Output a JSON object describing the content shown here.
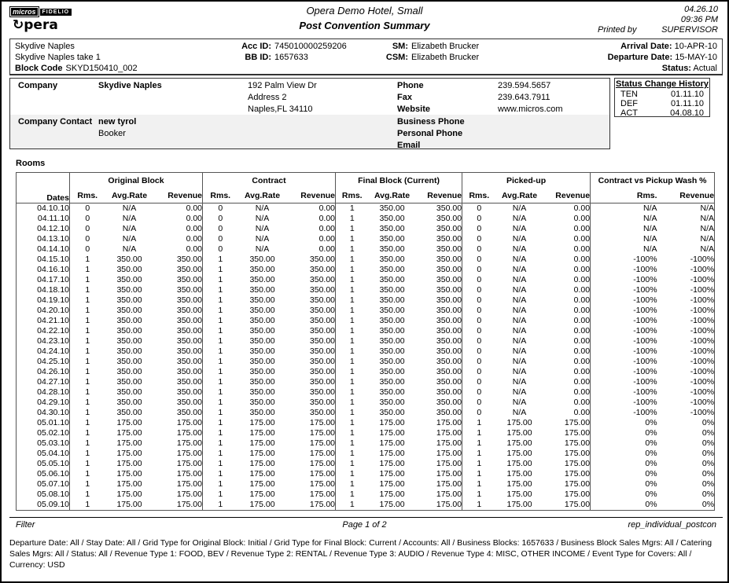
{
  "header": {
    "logo_micros": "micros",
    "logo_fidelio": "FIDELIO",
    "logo_opera_symbol": "↻",
    "logo_opera_text": "pera",
    "hotel_name": "Opera Demo Hotel, Small",
    "report_title": "Post Convention Summary",
    "date": "04.26.10",
    "time": "09:36 PM",
    "printed_by_label": "Printed by",
    "printed_by": "SUPERVISOR"
  },
  "block_info": {
    "account_name": "Skydive Naples",
    "block_name": "Skydive Naples take 1",
    "block_code_label": "Block Code",
    "block_code": "SKYD150410_002",
    "acc_id_label": "Acc ID:",
    "acc_id": "745010000259206",
    "bb_id_label": "BB ID:",
    "bb_id": "1657633",
    "sm_label": "SM:",
    "sm": "Elizabeth Brucker",
    "csm_label": "CSM:",
    "csm": "Elizabeth Brucker",
    "arrival_label": "Arrival Date:",
    "arrival": "10-APR-10",
    "departure_label": "Departure Date:",
    "departure": "15-MAY-10",
    "status_label": "Status:",
    "status": "Actual"
  },
  "company": {
    "label": "Company",
    "name": "Skydive Naples",
    "address_lines": [
      "192 Palm View Dr",
      "Address 2",
      "Naples,FL 34110"
    ],
    "phone_label": "Phone",
    "phone": "239.594.5657",
    "fax_label": "Fax",
    "fax": "239.643.7911",
    "website_label": "Website",
    "website": "www.micros.com",
    "contact_label": "Company Contact",
    "contact_name": "new tyrol",
    "contact_role": "Booker",
    "business_phone_label": "Business Phone",
    "personal_phone_label": "Personal Phone",
    "email_label": "Email"
  },
  "status_history": {
    "title": "Status Change History",
    "rows": [
      {
        "code": "TEN",
        "date": "01.11.10"
      },
      {
        "code": "DEF",
        "date": "01.11.10"
      },
      {
        "code": "ACT",
        "date": "04.08.10"
      }
    ]
  },
  "rooms": {
    "section_title": "Rooms",
    "group_headers": [
      "Original Block",
      "Contract",
      "Final Block (Current)",
      "Picked-up",
      "Contract vs Pickup Wash %"
    ],
    "col_headers": {
      "dates": "Dates",
      "rms": "Rms.",
      "avg_rate": "Avg.Rate",
      "revenue": "Revenue"
    },
    "rows": [
      [
        "04.10.10",
        "0",
        "N/A",
        "0.00",
        "0",
        "N/A",
        "0.00",
        "1",
        "350.00",
        "350.00",
        "0",
        "N/A",
        "0.00",
        "N/A",
        "N/A"
      ],
      [
        "04.11.10",
        "0",
        "N/A",
        "0.00",
        "0",
        "N/A",
        "0.00",
        "1",
        "350.00",
        "350.00",
        "0",
        "N/A",
        "0.00",
        "N/A",
        "N/A"
      ],
      [
        "04.12.10",
        "0",
        "N/A",
        "0.00",
        "0",
        "N/A",
        "0.00",
        "1",
        "350.00",
        "350.00",
        "0",
        "N/A",
        "0.00",
        "N/A",
        "N/A"
      ],
      [
        "04.13.10",
        "0",
        "N/A",
        "0.00",
        "0",
        "N/A",
        "0.00",
        "1",
        "350.00",
        "350.00",
        "0",
        "N/A",
        "0.00",
        "N/A",
        "N/A"
      ],
      [
        "04.14.10",
        "0",
        "N/A",
        "0.00",
        "0",
        "N/A",
        "0.00",
        "1",
        "350.00",
        "350.00",
        "0",
        "N/A",
        "0.00",
        "N/A",
        "N/A"
      ],
      [
        "04.15.10",
        "1",
        "350.00",
        "350.00",
        "1",
        "350.00",
        "350.00",
        "1",
        "350.00",
        "350.00",
        "0",
        "N/A",
        "0.00",
        "-100%",
        "-100%"
      ],
      [
        "04.16.10",
        "1",
        "350.00",
        "350.00",
        "1",
        "350.00",
        "350.00",
        "1",
        "350.00",
        "350.00",
        "0",
        "N/A",
        "0.00",
        "-100%",
        "-100%"
      ],
      [
        "04.17.10",
        "1",
        "350.00",
        "350.00",
        "1",
        "350.00",
        "350.00",
        "1",
        "350.00",
        "350.00",
        "0",
        "N/A",
        "0.00",
        "-100%",
        "-100%"
      ],
      [
        "04.18.10",
        "1",
        "350.00",
        "350.00",
        "1",
        "350.00",
        "350.00",
        "1",
        "350.00",
        "350.00",
        "0",
        "N/A",
        "0.00",
        "-100%",
        "-100%"
      ],
      [
        "04.19.10",
        "1",
        "350.00",
        "350.00",
        "1",
        "350.00",
        "350.00",
        "1",
        "350.00",
        "350.00",
        "0",
        "N/A",
        "0.00",
        "-100%",
        "-100%"
      ],
      [
        "04.20.10",
        "1",
        "350.00",
        "350.00",
        "1",
        "350.00",
        "350.00",
        "1",
        "350.00",
        "350.00",
        "0",
        "N/A",
        "0.00",
        "-100%",
        "-100%"
      ],
      [
        "04.21.10",
        "1",
        "350.00",
        "350.00",
        "1",
        "350.00",
        "350.00",
        "1",
        "350.00",
        "350.00",
        "0",
        "N/A",
        "0.00",
        "-100%",
        "-100%"
      ],
      [
        "04.22.10",
        "1",
        "350.00",
        "350.00",
        "1",
        "350.00",
        "350.00",
        "1",
        "350.00",
        "350.00",
        "0",
        "N/A",
        "0.00",
        "-100%",
        "-100%"
      ],
      [
        "04.23.10",
        "1",
        "350.00",
        "350.00",
        "1",
        "350.00",
        "350.00",
        "1",
        "350.00",
        "350.00",
        "0",
        "N/A",
        "0.00",
        "-100%",
        "-100%"
      ],
      [
        "04.24.10",
        "1",
        "350.00",
        "350.00",
        "1",
        "350.00",
        "350.00",
        "1",
        "350.00",
        "350.00",
        "0",
        "N/A",
        "0.00",
        "-100%",
        "-100%"
      ],
      [
        "04.25.10",
        "1",
        "350.00",
        "350.00",
        "1",
        "350.00",
        "350.00",
        "1",
        "350.00",
        "350.00",
        "0",
        "N/A",
        "0.00",
        "-100%",
        "-100%"
      ],
      [
        "04.26.10",
        "1",
        "350.00",
        "350.00",
        "1",
        "350.00",
        "350.00",
        "1",
        "350.00",
        "350.00",
        "0",
        "N/A",
        "0.00",
        "-100%",
        "-100%"
      ],
      [
        "04.27.10",
        "1",
        "350.00",
        "350.00",
        "1",
        "350.00",
        "350.00",
        "1",
        "350.00",
        "350.00",
        "0",
        "N/A",
        "0.00",
        "-100%",
        "-100%"
      ],
      [
        "04.28.10",
        "1",
        "350.00",
        "350.00",
        "1",
        "350.00",
        "350.00",
        "1",
        "350.00",
        "350.00",
        "0",
        "N/A",
        "0.00",
        "-100%",
        "-100%"
      ],
      [
        "04.29.10",
        "1",
        "350.00",
        "350.00",
        "1",
        "350.00",
        "350.00",
        "1",
        "350.00",
        "350.00",
        "0",
        "N/A",
        "0.00",
        "-100%",
        "-100%"
      ],
      [
        "04.30.10",
        "1",
        "350.00",
        "350.00",
        "1",
        "350.00",
        "350.00",
        "1",
        "350.00",
        "350.00",
        "0",
        "N/A",
        "0.00",
        "-100%",
        "-100%"
      ],
      [
        "05.01.10",
        "1",
        "175.00",
        "175.00",
        "1",
        "175.00",
        "175.00",
        "1",
        "175.00",
        "175.00",
        "1",
        "175.00",
        "175.00",
        "0%",
        "0%"
      ],
      [
        "05.02.10",
        "1",
        "175.00",
        "175.00",
        "1",
        "175.00",
        "175.00",
        "1",
        "175.00",
        "175.00",
        "1",
        "175.00",
        "175.00",
        "0%",
        "0%"
      ],
      [
        "05.03.10",
        "1",
        "175.00",
        "175.00",
        "1",
        "175.00",
        "175.00",
        "1",
        "175.00",
        "175.00",
        "1",
        "175.00",
        "175.00",
        "0%",
        "0%"
      ],
      [
        "05.04.10",
        "1",
        "175.00",
        "175.00",
        "1",
        "175.00",
        "175.00",
        "1",
        "175.00",
        "175.00",
        "1",
        "175.00",
        "175.00",
        "0%",
        "0%"
      ],
      [
        "05.05.10",
        "1",
        "175.00",
        "175.00",
        "1",
        "175.00",
        "175.00",
        "1",
        "175.00",
        "175.00",
        "1",
        "175.00",
        "175.00",
        "0%",
        "0%"
      ],
      [
        "05.06.10",
        "1",
        "175.00",
        "175.00",
        "1",
        "175.00",
        "175.00",
        "1",
        "175.00",
        "175.00",
        "1",
        "175.00",
        "175.00",
        "0%",
        "0%"
      ],
      [
        "05.07.10",
        "1",
        "175.00",
        "175.00",
        "1",
        "175.00",
        "175.00",
        "1",
        "175.00",
        "175.00",
        "1",
        "175.00",
        "175.00",
        "0%",
        "0%"
      ],
      [
        "05.08.10",
        "1",
        "175.00",
        "175.00",
        "1",
        "175.00",
        "175.00",
        "1",
        "175.00",
        "175.00",
        "1",
        "175.00",
        "175.00",
        "0%",
        "0%"
      ],
      [
        "05.09.10",
        "1",
        "175.00",
        "175.00",
        "1",
        "175.00",
        "175.00",
        "1",
        "175.00",
        "175.00",
        "1",
        "175.00",
        "175.00",
        "0%",
        "0%"
      ]
    ]
  },
  "footer": {
    "filter_label": "Filter",
    "page_label": "Page 1 of 2",
    "report_id": "rep_individual_postcon",
    "filter_text": "Departure Date: All / Stay Date: All / Grid Type for Original Block: Initial / Grid Type for Final Block: Current / Accounts: All / Business Blocks: 1657633 / Business Block Sales Mgrs: All / Catering Sales Mgrs: All / Status: All / Revenue Type 1: FOOD, BEV / Revenue Type 2: RENTAL / Revenue Type 3: AUDIO / Revenue Type 4: MISC, OTHER INCOME / Event Type for Covers: All / Currency: USD"
  }
}
